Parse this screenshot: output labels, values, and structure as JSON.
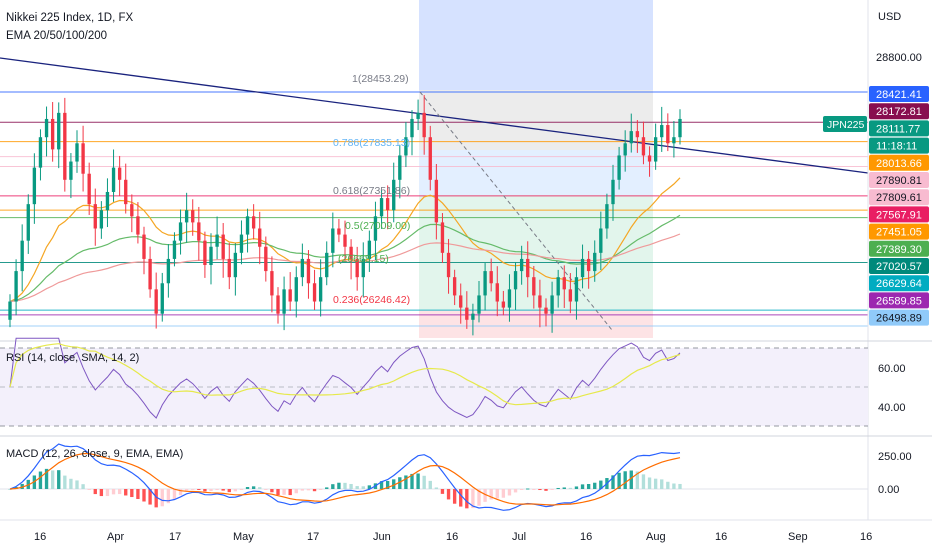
{
  "header": {
    "symbol": "Nikkei 225 Index, 1D, FX",
    "indicator": "EMA 20/50/100/200",
    "currency": "USD"
  },
  "axis": {
    "y_ticks": [
      "28800.00"
    ],
    "x_ticks": [
      "16",
      "Apr",
      "17",
      "May",
      "17",
      "Jun",
      "16",
      "Jul",
      "16",
      "Aug",
      "16",
      "Sep",
      "16"
    ]
  },
  "price_labels": [
    {
      "text": "28421.41",
      "bg": "#2962ff",
      "fg": "#ffffff"
    },
    {
      "text": "28172.81",
      "bg": "#880e4f",
      "fg": "#ffffff"
    },
    {
      "text": "28111.77",
      "bg": "#089981",
      "fg": "#ffffff"
    },
    {
      "text": "11:18:11",
      "bg": "#089981",
      "fg": "#ffffff"
    },
    {
      "text": "28013.66",
      "bg": "#ff9800",
      "fg": "#ffffff"
    },
    {
      "text": "27890.81",
      "bg": "#f8bbd0",
      "fg": "#131722"
    },
    {
      "text": "27809.61",
      "bg": "#f8bbd0",
      "fg": "#131722"
    },
    {
      "text": "27567.91",
      "bg": "#e91e63",
      "fg": "#ffffff"
    },
    {
      "text": "27451.05",
      "bg": "#ff9800",
      "fg": "#ffffff"
    },
    {
      "text": "27389.30",
      "bg": "#4caf50",
      "fg": "#ffffff"
    },
    {
      "text": "27020.57",
      "bg": "#00897b",
      "fg": "#ffffff"
    },
    {
      "text": "26629.64",
      "bg": "#00acc1",
      "fg": "#ffffff"
    },
    {
      "text": "26589.85",
      "bg": "#9c27b0",
      "fg": "#ffffff"
    },
    {
      "text": "26498.89",
      "bg": "#90caf9",
      "fg": "#131722"
    }
  ],
  "ticker_badge": "JPN225",
  "fib_labels": [
    "1(28453.29)",
    "0.786(27835.13)",
    "0.618(27351.86)",
    "0.5(27009.00)",
    "(26668.15)",
    "0.236(26246.42)"
  ],
  "rsi": {
    "label": "RSI (14, close, SMA, 14, 2)",
    "ticks": [
      "60.00",
      "40.00"
    ]
  },
  "macd": {
    "label": "MACD (12, 26, close, 9, EMA, EMA)",
    "ticks": [
      "250.00",
      "0.00"
    ]
  },
  "colors": {
    "bull": "#089981",
    "bear": "#f23645",
    "trendline": "#1a237e",
    "rsi_line": "#7e57c2",
    "rsi_ma": "#e6e94b",
    "macd_line": "#2962ff",
    "signal_line": "#ff6d00"
  },
  "chart_data": {
    "type": "candlestick",
    "title": "Nikkei 225 Index, 1D, FX",
    "currency": "USD",
    "candles_close": [
      26700,
      26950,
      27200,
      27500,
      27800,
      28050,
      28200,
      27950,
      28250,
      27700,
      27850,
      28000,
      27750,
      27500,
      27300,
      27450,
      27600,
      27800,
      27700,
      27500,
      27400,
      27250,
      27050,
      26800,
      26600,
      26850,
      27050,
      27200,
      27350,
      27450,
      27350,
      27200,
      27000,
      27150,
      27250,
      27050,
      26900,
      27100,
      27250,
      27400,
      27300,
      27150,
      26950,
      26750,
      26600,
      26800,
      26700,
      26900,
      27050,
      26850,
      26700,
      26900,
      27100,
      27300,
      27250,
      27150,
      27050,
      26900,
      27050,
      27200,
      27400,
      27550,
      27450,
      27700,
      27900,
      28050,
      28200,
      28250,
      28050,
      27700,
      27350,
      27100,
      26900,
      26750,
      26650,
      26550,
      26600,
      26750,
      26950,
      26850,
      26700,
      26650,
      26800,
      26950,
      27050,
      26900,
      26750,
      26650,
      26600,
      26750,
      26900,
      26800,
      26700,
      26900,
      27050,
      26950,
      27100,
      27300,
      27500,
      27700,
      27900,
      28000,
      28100,
      28050,
      27900,
      27850,
      28050,
      28150,
      28000,
      28050,
      28200
    ],
    "ema_levels": {
      "ema20": 27890.81,
      "ema50": 27567.91,
      "ema100": 27389.3,
      "ema200": 27020.57
    },
    "horizontal_levels": [
      28421.41,
      28172.81,
      28013.66,
      27890.81,
      27809.61,
      27567.91,
      27451.05,
      27389.3,
      27020.57,
      26629.64,
      26589.85,
      26498.89
    ],
    "last_price": 28111.77,
    "fibonacci": [
      {
        "ratio": 1,
        "price": 28453.29
      },
      {
        "ratio": 0.786,
        "price": 27835.13
      },
      {
        "ratio": 0.618,
        "price": 27351.86
      },
      {
        "ratio": 0.5,
        "price": 27009.0
      },
      {
        "ratio": 0.382,
        "price": 26668.15
      },
      {
        "ratio": 0.236,
        "price": 26246.42
      }
    ],
    "rsi_range": [
      30,
      70
    ]
  }
}
